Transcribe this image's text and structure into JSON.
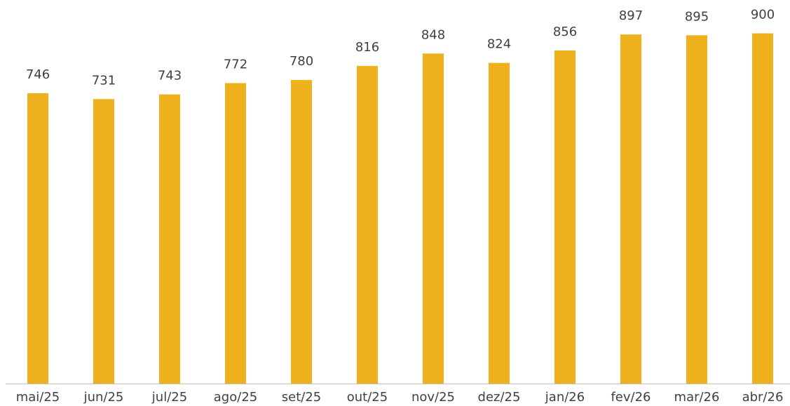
{
  "chart_data": {
    "type": "bar",
    "categories": [
      "mai/25",
      "jun/25",
      "jul/25",
      "ago/25",
      "set/25",
      "out/25",
      "nov/25",
      "dez/25",
      "jan/26",
      "fev/26",
      "mar/26",
      "abr/26"
    ],
    "values": [
      746,
      731,
      743,
      772,
      780,
      816,
      848,
      824,
      856,
      897,
      895,
      900
    ],
    "color": "#eeb11b",
    "ylim": [
      0,
      1000
    ]
  }
}
